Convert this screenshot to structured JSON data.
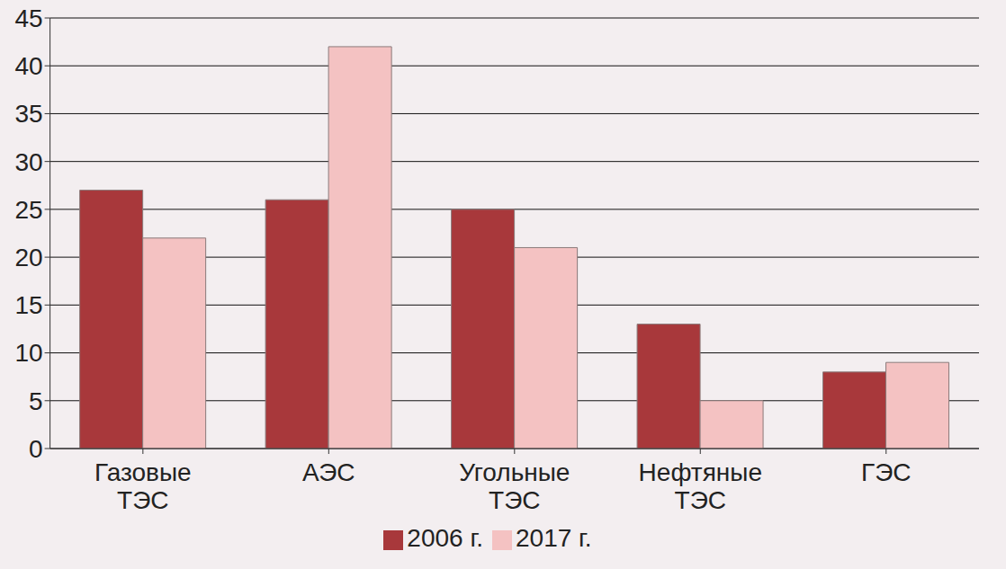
{
  "chart_data": {
    "type": "bar",
    "categories": [
      "Газовые ТЭС",
      "АЭС",
      "Угольные ТЭС",
      "Нефтяные ТЭС",
      "ГЭС"
    ],
    "series": [
      {
        "name": "2006 г.",
        "color": "#a8383b",
        "values": [
          27,
          26,
          25,
          13,
          8
        ]
      },
      {
        "name": "2017 г.",
        "color": "#f4c2c2",
        "values": [
          22,
          42,
          21,
          5,
          9
        ]
      }
    ],
    "ylim": [
      0,
      45
    ],
    "yticks": [
      0,
      5,
      10,
      15,
      20,
      25,
      30,
      35,
      40,
      45
    ],
    "grid": true,
    "legend": "bottom"
  }
}
